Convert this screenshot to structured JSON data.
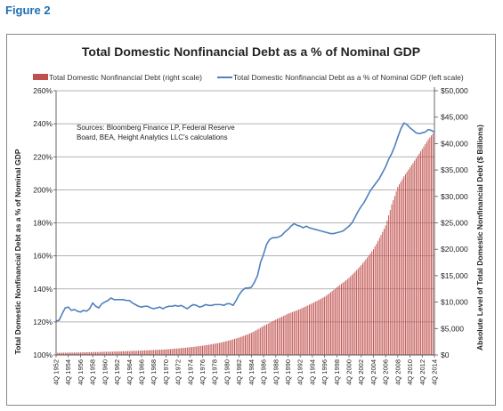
{
  "figure_label": "Figure 2",
  "chart_data": {
    "type": "bar+line",
    "title": "Total Domestic Nonfinancial Debt as a % of Nominal GDP",
    "legend_position": "top",
    "source_note": [
      "Sources: Bloomberg Finance LP, Federal Reserve",
      "Board, BEA, Height Analytics LLC's calculations"
    ],
    "left_axis": {
      "label": "Total Domestic Nonfinancial Debt as a % of Nominal GDP",
      "range": [
        100,
        260
      ],
      "ticks": [
        100,
        120,
        140,
        160,
        180,
        200,
        220,
        240,
        260
      ],
      "tick_labels": [
        "100%",
        "120%",
        "140%",
        "160%",
        "180%",
        "200%",
        "220%",
        "240%",
        "260%"
      ]
    },
    "right_axis": {
      "label": "Absolute Level of Total Domestic Nonfinancial Debt ($ Billions)",
      "range": [
        0,
        50000
      ],
      "ticks": [
        0,
        5000,
        10000,
        15000,
        20000,
        25000,
        30000,
        35000,
        40000,
        45000,
        50000
      ],
      "tick_labels": [
        "$0",
        "$5,000",
        "$10,000",
        "$15,000",
        "$20,000",
        "$25,000",
        "$30,000",
        "$35,000",
        "$40,000",
        "$45,000",
        "$50,000"
      ]
    },
    "x_axis": {
      "start_year": 1952,
      "end_year": 2014,
      "tick_labels": [
        "4Q 1952",
        "4Q 1954",
        "4Q 1956",
        "4Q 1958",
        "4Q 1960",
        "4Q 1962",
        "4Q 1964",
        "4Q 1966",
        "4Q 1968",
        "4Q 1970",
        "4Q 1972",
        "4Q 1974",
        "4Q 1976",
        "4Q 1978",
        "4Q 1980",
        "4Q 1982",
        "4Q 1984",
        "4Q 1986",
        "4Q 1988",
        "4Q 1990",
        "4Q 1992",
        "4Q 1994",
        "4Q 1996",
        "4Q 1998",
        "4Q 2000",
        "4Q 2002",
        "4Q 2004",
        "4Q 2006",
        "4Q 2008",
        "4Q 2010",
        "4Q 2012",
        "4Q 2014"
      ]
    },
    "grid": true,
    "series": [
      {
        "name": "Total Domestic Nonfinancial Debt (right scale)",
        "type": "bar",
        "axis": "right",
        "color": "#c0504d",
        "points": [
          [
            1952,
            400
          ],
          [
            1955,
            460
          ],
          [
            1958,
            540
          ],
          [
            1961,
            620
          ],
          [
            1964,
            740
          ],
          [
            1967,
            880
          ],
          [
            1970,
            1050
          ],
          [
            1973,
            1350
          ],
          [
            1976,
            1750
          ],
          [
            1979,
            2350
          ],
          [
            1982,
            3300
          ],
          [
            1984,
            4200
          ],
          [
            1986,
            5500
          ],
          [
            1988,
            6700
          ],
          [
            1990,
            7800
          ],
          [
            1992,
            8700
          ],
          [
            1994,
            9800
          ],
          [
            1996,
            11000
          ],
          [
            1998,
            12800
          ],
          [
            2000,
            14600
          ],
          [
            2002,
            17000
          ],
          [
            2004,
            20000
          ],
          [
            2006,
            24500
          ],
          [
            2007,
            28500
          ],
          [
            2008,
            31800
          ],
          [
            2009,
            33800
          ],
          [
            2010,
            35500
          ],
          [
            2011,
            37200
          ],
          [
            2012,
            39000
          ],
          [
            2013,
            40800
          ],
          [
            2014,
            42300
          ]
        ]
      },
      {
        "name": "Total Domestic Nonfinancial Debt as a % of Nominal GDP (left scale)",
        "type": "line",
        "axis": "left",
        "color": "#4f81bd",
        "points": [
          [
            1952.0,
            120.5
          ],
          [
            1952.5,
            121.0
          ],
          [
            1953.0,
            125.0
          ],
          [
            1953.5,
            128.5
          ],
          [
            1954.0,
            129.0
          ],
          [
            1954.5,
            127.0
          ],
          [
            1955.0,
            127.5
          ],
          [
            1955.5,
            126.5
          ],
          [
            1956.0,
            126.0
          ],
          [
            1956.5,
            127.0
          ],
          [
            1957.0,
            126.5
          ],
          [
            1957.5,
            128.0
          ],
          [
            1958.0,
            131.5
          ],
          [
            1958.5,
            129.5
          ],
          [
            1959.0,
            128.5
          ],
          [
            1959.5,
            131.0
          ],
          [
            1960.0,
            132.0
          ],
          [
            1960.5,
            133.0
          ],
          [
            1961.0,
            134.5
          ],
          [
            1961.5,
            133.5
          ],
          [
            1962.0,
            133.5
          ],
          [
            1962.5,
            133.5
          ],
          [
            1963.0,
            133.5
          ],
          [
            1963.5,
            133.0
          ],
          [
            1964.0,
            133.0
          ],
          [
            1964.5,
            131.5
          ],
          [
            1965.0,
            130.5
          ],
          [
            1965.5,
            129.5
          ],
          [
            1966.0,
            129.0
          ],
          [
            1966.5,
            129.5
          ],
          [
            1967.0,
            129.5
          ],
          [
            1967.5,
            128.5
          ],
          [
            1968.0,
            128.0
          ],
          [
            1968.5,
            128.5
          ],
          [
            1969.0,
            129.0
          ],
          [
            1969.5,
            128.0
          ],
          [
            1970.0,
            129.0
          ],
          [
            1970.5,
            129.5
          ],
          [
            1971.0,
            129.5
          ],
          [
            1971.5,
            130.0
          ],
          [
            1972.0,
            129.5
          ],
          [
            1972.5,
            130.0
          ],
          [
            1973.0,
            129.0
          ],
          [
            1973.5,
            128.0
          ],
          [
            1974.0,
            129.5
          ],
          [
            1974.5,
            130.5
          ],
          [
            1975.0,
            130.0
          ],
          [
            1975.5,
            129.0
          ],
          [
            1976.0,
            129.5
          ],
          [
            1976.5,
            130.5
          ],
          [
            1977.0,
            130.0
          ],
          [
            1977.5,
            130.0
          ],
          [
            1978.0,
            130.5
          ],
          [
            1978.5,
            130.5
          ],
          [
            1979.0,
            130.5
          ],
          [
            1979.5,
            130.0
          ],
          [
            1980.0,
            131.0
          ],
          [
            1980.5,
            131.0
          ],
          [
            1981.0,
            130.0
          ],
          [
            1981.5,
            133.0
          ],
          [
            1982.0,
            136.5
          ],
          [
            1982.5,
            139.0
          ],
          [
            1983.0,
            140.5
          ],
          [
            1983.5,
            140.5
          ],
          [
            1984.0,
            141.0
          ],
          [
            1984.5,
            144.0
          ],
          [
            1985.0,
            148.0
          ],
          [
            1985.5,
            156.0
          ],
          [
            1986.0,
            161.0
          ],
          [
            1986.5,
            167.0
          ],
          [
            1987.0,
            170.0
          ],
          [
            1987.5,
            171.0
          ],
          [
            1988.0,
            171.0
          ],
          [
            1988.5,
            171.5
          ],
          [
            1989.0,
            172.5
          ],
          [
            1989.5,
            174.5
          ],
          [
            1990.0,
            176.0
          ],
          [
            1990.5,
            178.0
          ],
          [
            1991.0,
            179.5
          ],
          [
            1991.5,
            178.5
          ],
          [
            1992.0,
            178.0
          ],
          [
            1992.5,
            177.0
          ],
          [
            1993.0,
            178.0
          ],
          [
            1993.5,
            177.0
          ],
          [
            1994.0,
            176.5
          ],
          [
            1994.5,
            176.0
          ],
          [
            1995.0,
            175.5
          ],
          [
            1995.5,
            175.0
          ],
          [
            1996.0,
            174.5
          ],
          [
            1996.5,
            174.0
          ],
          [
            1997.0,
            173.5
          ],
          [
            1997.5,
            173.5
          ],
          [
            1998.0,
            174.0
          ],
          [
            1998.5,
            174.5
          ],
          [
            1999.0,
            175.0
          ],
          [
            1999.5,
            176.5
          ],
          [
            2000.0,
            178.0
          ],
          [
            2000.5,
            180.0
          ],
          [
            2001.0,
            183.5
          ],
          [
            2001.5,
            187.0
          ],
          [
            2002.0,
            190.0
          ],
          [
            2002.5,
            192.5
          ],
          [
            2003.0,
            196.0
          ],
          [
            2003.5,
            199.5
          ],
          [
            2004.0,
            202.0
          ],
          [
            2004.5,
            204.5
          ],
          [
            2005.0,
            207.0
          ],
          [
            2005.5,
            210.5
          ],
          [
            2006.0,
            214.0
          ],
          [
            2006.5,
            218.5
          ],
          [
            2007.0,
            222.0
          ],
          [
            2007.5,
            226.5
          ],
          [
            2008.0,
            232.0
          ],
          [
            2008.5,
            237.0
          ],
          [
            2009.0,
            240.5
          ],
          [
            2009.5,
            239.5
          ],
          [
            2010.0,
            237.5
          ],
          [
            2010.5,
            236.0
          ],
          [
            2011.0,
            234.5
          ],
          [
            2011.5,
            234.0
          ],
          [
            2012.0,
            234.5
          ],
          [
            2012.5,
            235.0
          ],
          [
            2013.0,
            236.5
          ],
          [
            2013.5,
            236.0
          ],
          [
            2014.0,
            235.0
          ]
        ]
      }
    ]
  }
}
